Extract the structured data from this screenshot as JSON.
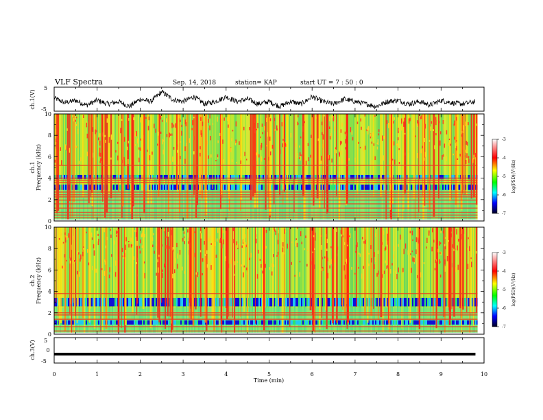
{
  "header": {
    "title": "VLF Spectra",
    "date": "Sep. 14, 2018",
    "station": "station= KAP",
    "start": "start  UT  =   7 : 50 : 0"
  },
  "chart_data": [
    {
      "type": "line",
      "panel": "ch1-waveform",
      "ylabel": "ch.1(V)",
      "ylim": [
        -5,
        5
      ],
      "yticks": [
        5,
        -5
      ],
      "xlim": [
        0,
        10
      ],
      "series": [
        {
          "x": [
            0,
            0.25,
            0.5,
            0.75,
            1.0,
            1.25,
            1.5,
            1.75,
            2.0,
            2.25,
            2.5,
            2.75,
            3.0,
            3.25,
            3.5,
            3.75,
            4.0,
            4.25,
            4.5,
            4.75,
            5.0,
            5.25,
            5.5,
            5.75,
            6.0,
            6.25,
            6.5,
            6.75,
            7.0,
            7.25,
            7.5,
            7.75,
            8.0,
            8.25,
            8.5,
            8.75,
            9.0,
            9.25,
            9.5,
            9.8
          ],
          "values": [
            0.5,
            -1.5,
            -0.5,
            -2.5,
            -0.5,
            -2,
            -1,
            -3,
            0,
            -1,
            3,
            0,
            -1,
            1,
            -2,
            -1,
            1,
            -1,
            0,
            -2,
            -1,
            -3,
            -1,
            -2,
            1,
            -1,
            -2,
            0,
            -1,
            -2,
            -3,
            -1,
            -0.5,
            -2,
            -1,
            -2.5,
            -0.5,
            -1.5,
            -2,
            -1
          ]
        }
      ]
    },
    {
      "type": "heatmap",
      "panel": "ch1-spectrogram",
      "ylabel_line1": "ch.1",
      "ylabel_line2": "Frequency (kHz)",
      "ylim": [
        0,
        10
      ],
      "yticks": [
        "0",
        "2",
        "4",
        "6",
        "8",
        "10"
      ],
      "xlim": [
        0,
        9.85
      ],
      "bands_khz": [
        0.3,
        0.55,
        0.8,
        1.2,
        1.6,
        1.95,
        2.25,
        2.45,
        2.7,
        3.6,
        3.8,
        4.0,
        5.2
      ],
      "low_level_bands_khz": [
        [
          2.9,
          3.4
        ],
        [
          3.9,
          4.3
        ]
      ],
      "colorbar": {
        "label": "log(PSD)(V²/Hz)",
        "range": [
          -7,
          -3
        ],
        "ticks": [
          "-3",
          "-4",
          "-5",
          "-6",
          "-7"
        ]
      }
    },
    {
      "type": "heatmap",
      "panel": "ch2-spectrogram",
      "ylabel_line1": "ch.2",
      "ylabel_line2": "Frequency (kHz)",
      "ylim": [
        0,
        10
      ],
      "yticks": [
        "0",
        "2",
        "4",
        "6",
        "8",
        "10"
      ],
      "xlim": [
        0,
        9.85
      ],
      "bands_khz": [
        0.3,
        0.7,
        1.4,
        1.8,
        2.0,
        3.8
      ],
      "low_level_bands_khz": [
        [
          2.6,
          3.4
        ],
        [
          0.9,
          1.3
        ]
      ],
      "colorbar": {
        "label": "log(PSD)(V²/Hz)",
        "range": [
          -7,
          -3
        ],
        "ticks": [
          "-3",
          "-4",
          "-5",
          "-6",
          "-7"
        ]
      }
    },
    {
      "type": "line",
      "panel": "ch3-waveform",
      "ylabel": "ch.3(V)",
      "ylim": [
        -5,
        5
      ],
      "yticks": [
        5,
        0,
        -5
      ],
      "xlim": [
        0,
        10
      ],
      "series": [
        {
          "x": [
            0,
            9.8
          ],
          "values": [
            -1.5,
            -1.5
          ]
        }
      ]
    }
  ],
  "xaxis": {
    "label": "Time (min)",
    "ticks": [
      "0",
      "1",
      "2",
      "3",
      "4",
      "5",
      "6",
      "7",
      "8",
      "9",
      "10"
    ]
  }
}
